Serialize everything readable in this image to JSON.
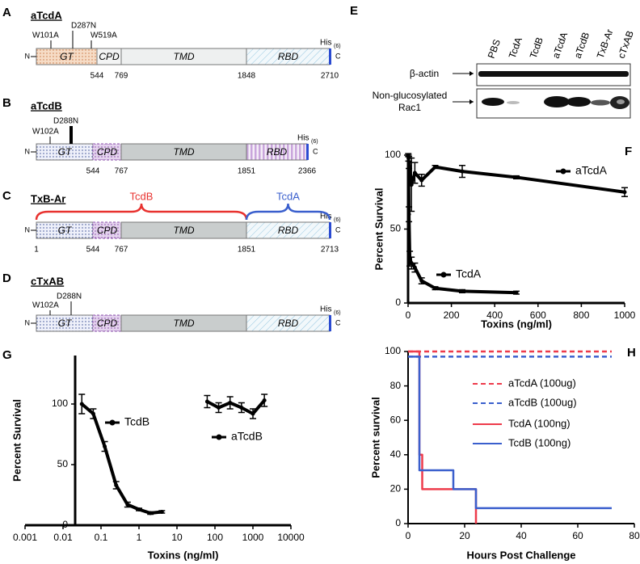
{
  "terminus": {
    "n": "N",
    "c": "C"
  },
  "his_tag": {
    "text": "His",
    "sub": "(6)"
  },
  "constructs": [
    {
      "label": "A",
      "title": "aTcdA",
      "mutations": [
        "W101A",
        "D287N",
        "W519A"
      ],
      "segments": [
        "GT",
        "CPD",
        "TMD",
        "RBD"
      ],
      "boundaries": [
        544,
        769,
        1848,
        2710
      ]
    },
    {
      "label": "B",
      "title": "aTcdB",
      "mutations": [
        "W102A",
        "D288N"
      ],
      "segments": [
        "GT",
        "CPD",
        "TMD",
        "RBD"
      ],
      "boundaries": [
        544,
        767,
        1851,
        2366
      ]
    },
    {
      "label": "C",
      "title": "TxB-Ar",
      "braces": [
        "TcdB",
        "TcdA"
      ],
      "segments": [
        "GT",
        "CPD",
        "TMD",
        "RBD"
      ],
      "boundaries": [
        1,
        544,
        767,
        1851,
        2713
      ]
    },
    {
      "label": "D",
      "title": "cTxAB",
      "mutations": [
        "W102A",
        "D288N"
      ],
      "segments": [
        "GT",
        "CPD",
        "TMD",
        "RBD"
      ]
    }
  ],
  "blot": {
    "label": "E",
    "lanes": [
      "PBS",
      "TcdA",
      "TcdB",
      "aTcdA",
      "aTcdB",
      "TxB-Ar",
      "cTxAB"
    ],
    "rows": [
      "β-actin",
      "Non-glucosylated\nRac1"
    ]
  },
  "chart_data": [
    {
      "type": "line",
      "label": "F",
      "xlabel": "Toxins (ng/ml)",
      "ylabel": "Percent Survival",
      "xlim": [
        0,
        1000
      ],
      "xticks": [
        0,
        200,
        400,
        600,
        800,
        1000
      ],
      "ylim": [
        0,
        100
      ],
      "yticks": [
        0,
        50,
        100
      ],
      "markers": true,
      "series": [
        {
          "name": "aTcdA",
          "color": "#000000",
          "x": [
            3.9,
            15.6,
            31.25,
            62.5,
            125,
            250,
            500,
            1000
          ],
          "values": [
            95,
            80,
            88,
            83,
            92,
            89,
            85,
            75
          ],
          "errors": [
            4,
            18,
            7,
            4,
            1,
            4,
            1,
            3
          ]
        },
        {
          "name": "TcdA",
          "color": "#000000",
          "x": [
            0.98,
            1.95,
            3.9,
            7.8,
            15.6,
            31.25,
            62.5,
            125,
            250,
            500
          ],
          "values": [
            100,
            98,
            60,
            30,
            27,
            24,
            15,
            10,
            8,
            7
          ],
          "errors": [
            1,
            2,
            5,
            5,
            4,
            3,
            2,
            1,
            1,
            1
          ]
        }
      ]
    },
    {
      "type": "line",
      "label": "G",
      "xlabel": "Toxins (ng/ml)",
      "ylabel": "Percent Survival",
      "xscale": "log",
      "xlim": [
        0.001,
        10000
      ],
      "xticks": [
        0.001,
        0.01,
        0.1,
        1,
        10,
        100,
        1000,
        10000
      ],
      "ylim": [
        0,
        140
      ],
      "yticks": [
        0,
        50,
        100
      ],
      "markers": true,
      "series": [
        {
          "name": "TcdB",
          "color": "#000000",
          "x": [
            0.03125,
            0.0625,
            0.125,
            0.25,
            0.5,
            1,
            2,
            4
          ],
          "values": [
            100,
            92,
            65,
            33,
            17,
            13,
            10,
            11
          ],
          "errors": [
            8,
            4,
            4,
            3,
            2,
            1,
            1,
            1
          ]
        },
        {
          "name": "aTcdB",
          "color": "#000000",
          "x": [
            62.5,
            125,
            250,
            500,
            1000,
            2000
          ],
          "values": [
            102,
            97,
            101,
            97,
            92,
            103
          ],
          "errors": [
            5,
            4,
            5,
            4,
            4,
            5
          ]
        }
      ]
    },
    {
      "type": "line",
      "label": "H",
      "xlabel": "Hours Post Challenge",
      "ylabel": "Percent survival",
      "step": true,
      "xlim": [
        0,
        80
      ],
      "xticks": [
        0,
        20,
        40,
        60,
        80
      ],
      "ylim": [
        0,
        100
      ],
      "yticks": [
        0,
        20,
        40,
        60,
        80,
        100
      ],
      "series": [
        {
          "name": "aTcdA (100ug)",
          "color": "#ee3b4b",
          "dash": true,
          "x": [
            0,
            72
          ],
          "values": [
            100,
            100
          ]
        },
        {
          "name": "aTcdB (100ug)",
          "color": "#3a5fcd",
          "dash": true,
          "x": [
            0,
            72
          ],
          "values": [
            97,
            97
          ]
        },
        {
          "name": "TcdA (100ng)",
          "color": "#ee3b4b",
          "x": [
            0,
            4,
            5,
            24
          ],
          "values": [
            100,
            40,
            20,
            0
          ]
        },
        {
          "name": "TcdB (100ng)",
          "color": "#3a5fcd",
          "x": [
            0,
            4,
            16,
            24,
            72
          ],
          "values": [
            97,
            31,
            20,
            9,
            9
          ]
        }
      ]
    }
  ]
}
